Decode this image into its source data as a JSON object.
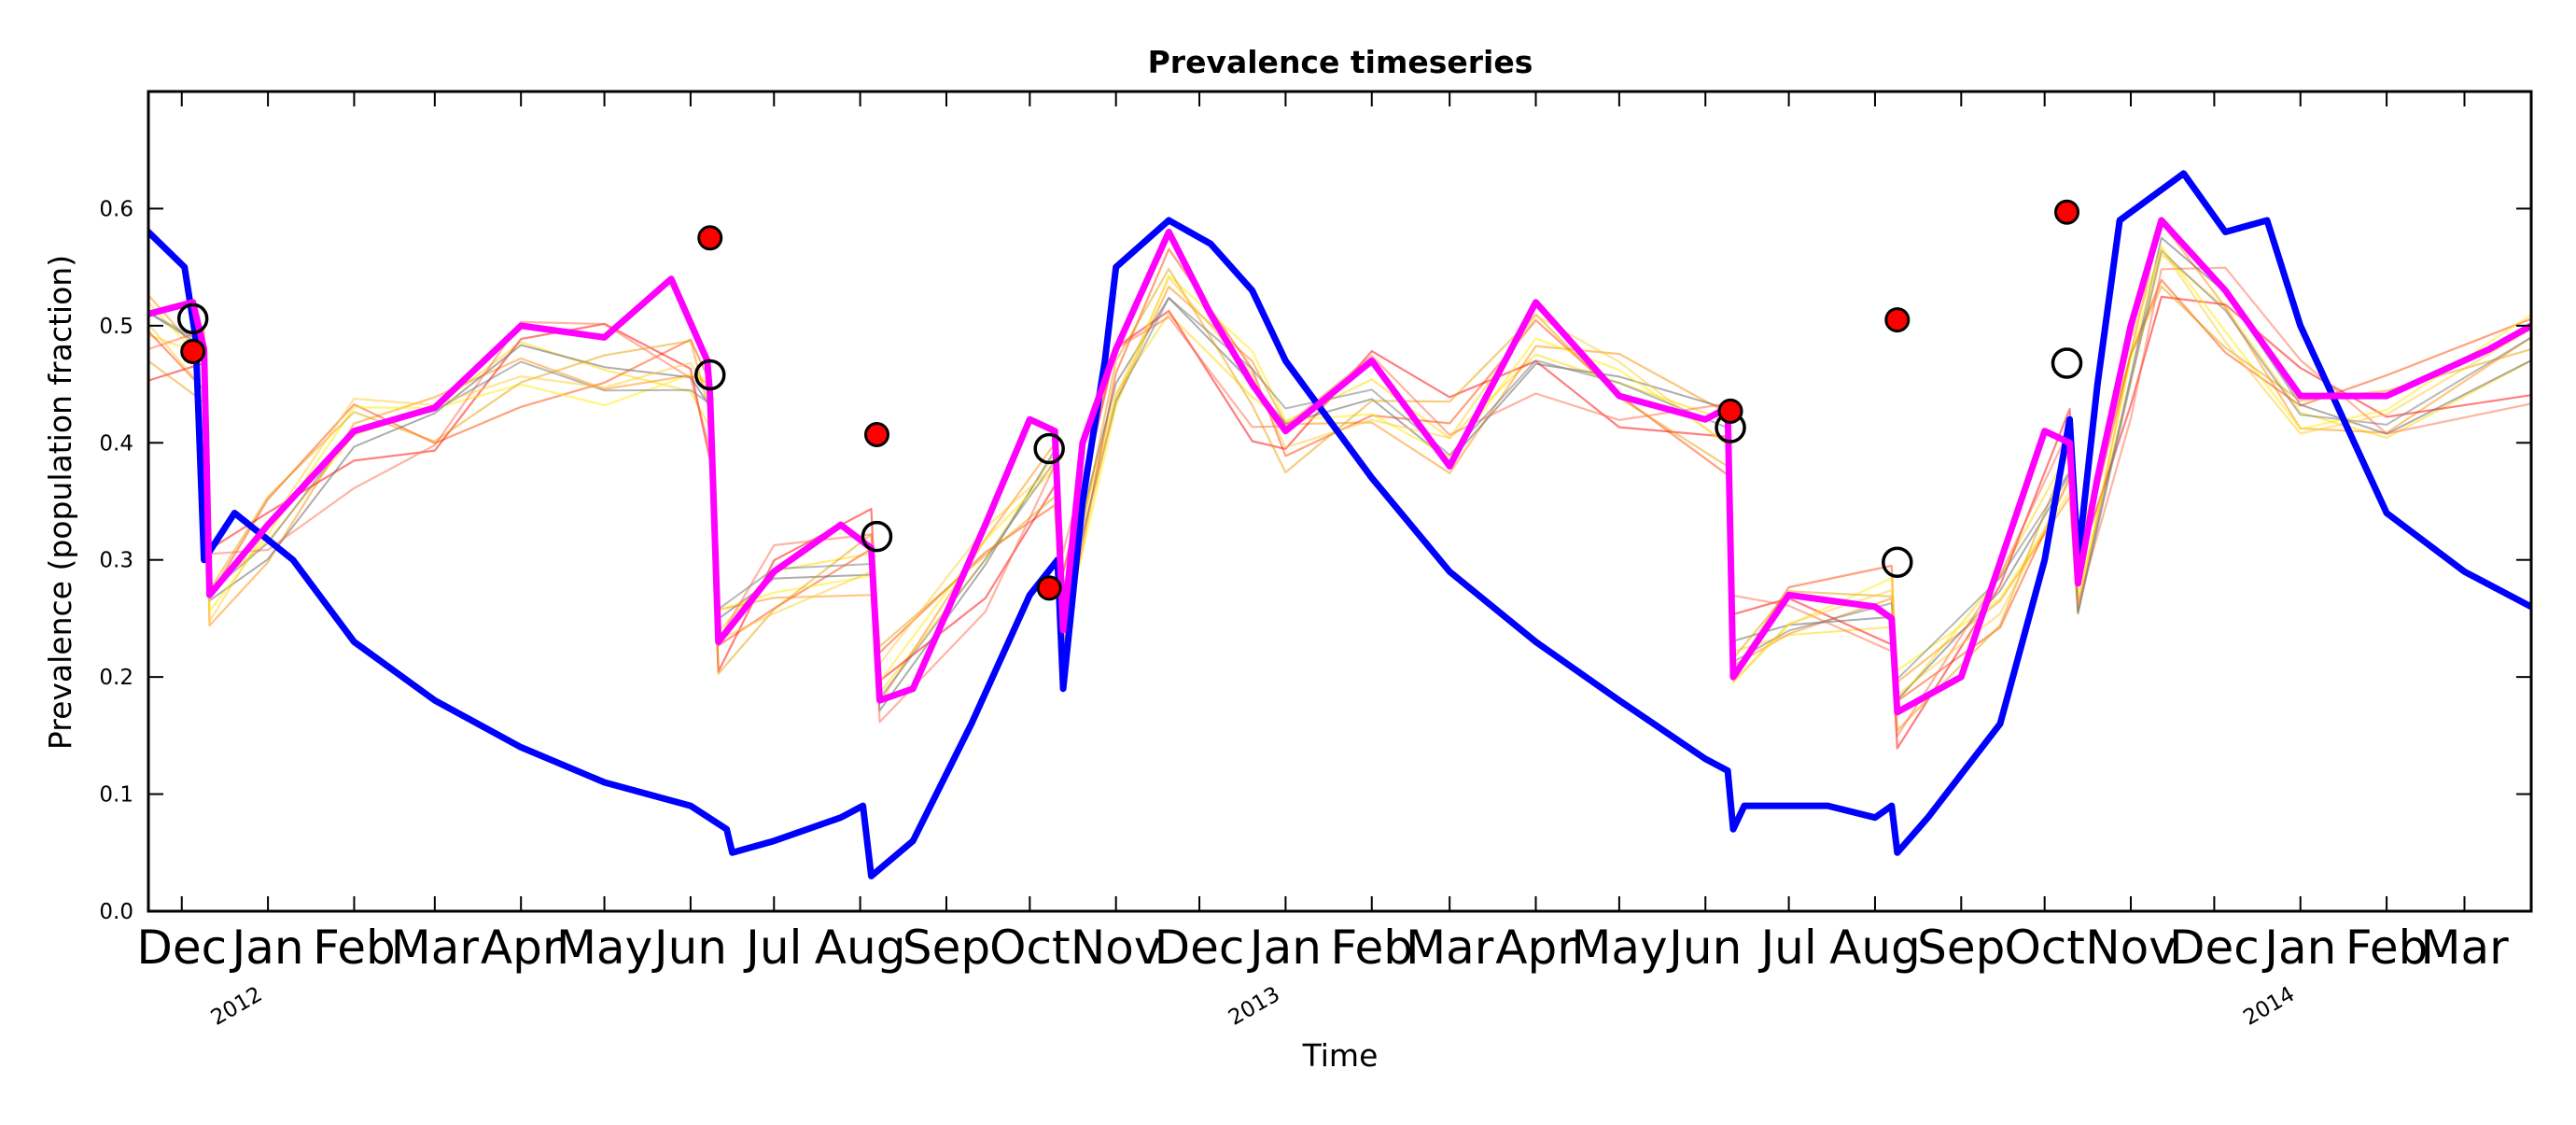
{
  "chart_data": {
    "type": "line",
    "title": "Prevalence timeseries",
    "xlabel": "Time",
    "ylabel": "Prevalence (population fraction)",
    "xlim": [
      "2011-11-19",
      "2014-03-25"
    ],
    "ylim": [
      0.0,
      0.7
    ],
    "yticks": [
      0.0,
      0.1,
      0.2,
      0.3,
      0.4,
      0.5,
      0.6
    ],
    "ytick_labels": [
      "0.0",
      "0.1",
      "0.2",
      "0.3",
      "0.4",
      "0.5",
      "0.6"
    ],
    "xticks": [
      {
        "date": "2011-12-01",
        "label": "Dec"
      },
      {
        "date": "2012-01-01",
        "label": "Jan"
      },
      {
        "date": "2012-02-01",
        "label": "Feb"
      },
      {
        "date": "2012-03-01",
        "label": "Mar"
      },
      {
        "date": "2012-04-01",
        "label": "Apr"
      },
      {
        "date": "2012-05-01",
        "label": "May"
      },
      {
        "date": "2012-06-01",
        "label": "Jun"
      },
      {
        "date": "2012-07-01",
        "label": "Jul"
      },
      {
        "date": "2012-08-01",
        "label": "Aug"
      },
      {
        "date": "2012-09-01",
        "label": "Sep"
      },
      {
        "date": "2012-10-01",
        "label": "Oct"
      },
      {
        "date": "2012-11-01",
        "label": "Nov"
      },
      {
        "date": "2012-12-01",
        "label": "Dec"
      },
      {
        "date": "2013-01-01",
        "label": "Jan"
      },
      {
        "date": "2013-02-01",
        "label": "Feb"
      },
      {
        "date": "2013-03-01",
        "label": "Mar"
      },
      {
        "date": "2013-04-01",
        "label": "Apr"
      },
      {
        "date": "2013-05-01",
        "label": "May"
      },
      {
        "date": "2013-06-01",
        "label": "Jun"
      },
      {
        "date": "2013-07-01",
        "label": "Jul"
      },
      {
        "date": "2013-08-01",
        "label": "Aug"
      },
      {
        "date": "2013-09-01",
        "label": "Sep"
      },
      {
        "date": "2013-10-01",
        "label": "Oct"
      },
      {
        "date": "2013-11-01",
        "label": "Nov"
      },
      {
        "date": "2013-12-01",
        "label": "Dec"
      },
      {
        "date": "2014-01-01",
        "label": "Jan"
      },
      {
        "date": "2014-02-01",
        "label": "Feb"
      },
      {
        "date": "2014-03-01",
        "label": "Mar"
      }
    ],
    "year_labels": [
      {
        "date": "2012-01-01",
        "label": "2012"
      },
      {
        "date": "2013-01-01",
        "label": "2013"
      },
      {
        "date": "2014-01-01",
        "label": "2014"
      }
    ],
    "series": [
      {
        "role": "blue-timeseries",
        "color": "#0000ff",
        "points": [
          [
            "2011-11-19",
            0.58
          ],
          [
            "2011-12-02",
            0.55
          ],
          [
            "2011-12-06",
            0.49
          ],
          [
            "2011-12-09",
            0.3
          ],
          [
            "2011-12-20",
            0.34
          ],
          [
            "2012-01-10",
            0.3
          ],
          [
            "2012-02-01",
            0.23
          ],
          [
            "2012-03-01",
            0.18
          ],
          [
            "2012-04-01",
            0.14
          ],
          [
            "2012-05-01",
            0.11
          ],
          [
            "2012-06-01",
            0.09
          ],
          [
            "2012-06-14",
            0.07
          ],
          [
            "2012-06-16",
            0.05
          ],
          [
            "2012-07-01",
            0.06
          ],
          [
            "2012-07-25",
            0.08
          ],
          [
            "2012-08-02",
            0.09
          ],
          [
            "2012-08-05",
            0.03
          ],
          [
            "2012-08-20",
            0.06
          ],
          [
            "2012-09-10",
            0.16
          ],
          [
            "2012-10-01",
            0.27
          ],
          [
            "2012-10-11",
            0.3
          ],
          [
            "2012-10-13",
            0.19
          ],
          [
            "2012-10-20",
            0.35
          ],
          [
            "2012-10-28",
            0.47
          ],
          [
            "2012-11-01",
            0.55
          ],
          [
            "2012-11-20",
            0.59
          ],
          [
            "2012-12-05",
            0.57
          ],
          [
            "2012-12-20",
            0.53
          ],
          [
            "2013-01-01",
            0.47
          ],
          [
            "2013-02-01",
            0.37
          ],
          [
            "2013-03-01",
            0.29
          ],
          [
            "2013-04-01",
            0.23
          ],
          [
            "2013-05-01",
            0.18
          ],
          [
            "2013-06-01",
            0.13
          ],
          [
            "2013-06-09",
            0.12
          ],
          [
            "2013-06-11",
            0.07
          ],
          [
            "2013-06-15",
            0.09
          ],
          [
            "2013-07-15",
            0.09
          ],
          [
            "2013-08-01",
            0.08
          ],
          [
            "2013-08-07",
            0.09
          ],
          [
            "2013-08-09",
            0.05
          ],
          [
            "2013-08-20",
            0.08
          ],
          [
            "2013-09-15",
            0.16
          ],
          [
            "2013-10-01",
            0.3
          ],
          [
            "2013-10-10",
            0.42
          ],
          [
            "2013-10-13",
            0.3
          ],
          [
            "2013-10-20",
            0.45
          ],
          [
            "2013-10-28",
            0.59
          ],
          [
            "2013-11-20",
            0.63
          ],
          [
            "2013-12-05",
            0.58
          ],
          [
            "2013-12-20",
            0.59
          ],
          [
            "2014-01-01",
            0.5
          ],
          [
            "2014-02-01",
            0.34
          ],
          [
            "2014-03-01",
            0.29
          ],
          [
            "2014-03-25",
            0.26
          ]
        ]
      },
      {
        "role": "magenta-timeseries",
        "color": "#ff00ff",
        "points": [
          [
            "2011-11-19",
            0.51
          ],
          [
            "2011-12-05",
            0.52
          ],
          [
            "2011-12-09",
            0.48
          ],
          [
            "2011-12-11",
            0.27
          ],
          [
            "2012-01-01",
            0.33
          ],
          [
            "2012-02-01",
            0.41
          ],
          [
            "2012-03-01",
            0.43
          ],
          [
            "2012-04-01",
            0.5
          ],
          [
            "2012-05-01",
            0.49
          ],
          [
            "2012-05-25",
            0.54
          ],
          [
            "2012-06-07",
            0.47
          ],
          [
            "2012-06-08",
            0.44
          ],
          [
            "2012-06-11",
            0.23
          ],
          [
            "2012-07-01",
            0.29
          ],
          [
            "2012-07-25",
            0.33
          ],
          [
            "2012-08-05",
            0.31
          ],
          [
            "2012-08-08",
            0.18
          ],
          [
            "2012-08-20",
            0.19
          ],
          [
            "2012-09-15",
            0.33
          ],
          [
            "2012-10-01",
            0.42
          ],
          [
            "2012-10-10",
            0.41
          ],
          [
            "2012-10-13",
            0.24
          ],
          [
            "2012-10-20",
            0.4
          ],
          [
            "2012-11-01",
            0.48
          ],
          [
            "2012-11-20",
            0.58
          ],
          [
            "2012-12-05",
            0.51
          ],
          [
            "2012-12-20",
            0.45
          ],
          [
            "2013-01-01",
            0.41
          ],
          [
            "2013-02-01",
            0.47
          ],
          [
            "2013-03-01",
            0.38
          ],
          [
            "2013-04-01",
            0.52
          ],
          [
            "2013-05-01",
            0.44
          ],
          [
            "2013-06-01",
            0.42
          ],
          [
            "2013-06-09",
            0.43
          ],
          [
            "2013-06-11",
            0.2
          ],
          [
            "2013-07-01",
            0.27
          ],
          [
            "2013-08-01",
            0.26
          ],
          [
            "2013-08-07",
            0.25
          ],
          [
            "2013-08-09",
            0.17
          ],
          [
            "2013-09-01",
            0.2
          ],
          [
            "2013-10-01",
            0.41
          ],
          [
            "2013-10-10",
            0.4
          ],
          [
            "2013-10-13",
            0.28
          ],
          [
            "2013-10-20",
            0.37
          ],
          [
            "2013-11-01",
            0.5
          ],
          [
            "2013-11-12",
            0.59
          ],
          [
            "2013-12-05",
            0.53
          ],
          [
            "2014-01-01",
            0.44
          ],
          [
            "2014-02-01",
            0.44
          ],
          [
            "2014-03-10",
            0.48
          ],
          [
            "2014-03-25",
            0.5
          ]
        ]
      }
    ],
    "ensemble_members": [
      {
        "color": "#ffd700",
        "offsets": [
          0.0,
          0.0,
          0.01,
          -0.03,
          -0.01,
          0.01,
          0.0,
          0.01,
          0.03,
          0.05,
          -0.06,
          -0.05,
          -0.02,
          0.01,
          0.0
        ]
      },
      {
        "color": "#ff8c00",
        "offsets": [
          0.0,
          0.0,
          0.0,
          0.0,
          0.0,
          0.0,
          0.0,
          0.0,
          0.0,
          0.0,
          0.0,
          0.0,
          0.0,
          0.0,
          0.0
        ]
      },
      {
        "color": "#ff4500",
        "offsets": [
          0.0,
          0.0,
          0.0,
          0.0,
          0.0,
          0.0,
          0.0,
          0.0,
          0.0,
          0.0,
          0.0,
          0.0,
          0.0,
          0.0,
          0.0
        ]
      },
      {
        "color": "#ff0000",
        "offsets": [
          0.0,
          0.0,
          0.0,
          0.0,
          0.0,
          0.0,
          0.0,
          0.0,
          0.0,
          0.0,
          0.0,
          0.0,
          0.0,
          0.0,
          0.0
        ]
      }
    ],
    "ensemble_base": [
      [
        "2011-11-19",
        0.5
      ],
      [
        "2011-12-09",
        0.47
      ],
      [
        "2011-12-11",
        0.27
      ],
      [
        "2012-01-01",
        0.32
      ],
      [
        "2012-02-01",
        0.41
      ],
      [
        "2012-03-01",
        0.42
      ],
      [
        "2012-04-01",
        0.47
      ],
      [
        "2012-05-01",
        0.46
      ],
      [
        "2012-06-01",
        0.46
      ],
      [
        "2012-06-08",
        0.43
      ],
      [
        "2012-06-11",
        0.24
      ],
      [
        "2012-07-01",
        0.28
      ],
      [
        "2012-08-05",
        0.3
      ],
      [
        "2012-08-08",
        0.19
      ],
      [
        "2012-09-15",
        0.3
      ],
      [
        "2012-10-10",
        0.38
      ],
      [
        "2012-10-13",
        0.26
      ],
      [
        "2012-11-01",
        0.45
      ],
      [
        "2012-11-20",
        0.53
      ],
      [
        "2012-12-20",
        0.45
      ],
      [
        "2013-01-01",
        0.41
      ],
      [
        "2013-02-01",
        0.44
      ],
      [
        "2013-03-01",
        0.4
      ],
      [
        "2013-04-01",
        0.48
      ],
      [
        "2013-05-01",
        0.45
      ],
      [
        "2013-06-09",
        0.41
      ],
      [
        "2013-06-11",
        0.22
      ],
      [
        "2013-07-01",
        0.25
      ],
      [
        "2013-08-07",
        0.26
      ],
      [
        "2013-08-09",
        0.18
      ],
      [
        "2013-09-15",
        0.27
      ],
      [
        "2013-10-10",
        0.38
      ],
      [
        "2013-10-13",
        0.27
      ],
      [
        "2013-11-01",
        0.46
      ],
      [
        "2013-11-12",
        0.56
      ],
      [
        "2013-12-05",
        0.51
      ],
      [
        "2014-01-01",
        0.43
      ],
      [
        "2014-02-01",
        0.42
      ],
      [
        "2014-03-25",
        0.48
      ]
    ],
    "markers_red": [
      [
        "2011-12-05",
        0.478
      ],
      [
        "2012-06-08",
        0.575
      ],
      [
        "2012-08-07",
        0.407
      ],
      [
        "2012-10-08",
        0.276
      ],
      [
        "2013-06-10",
        0.427
      ],
      [
        "2013-08-09",
        0.505
      ],
      [
        "2013-10-09",
        0.597
      ]
    ],
    "markers_open": [
      [
        "2011-12-05",
        0.506
      ],
      [
        "2012-06-08",
        0.458
      ],
      [
        "2012-08-07",
        0.32
      ],
      [
        "2012-10-08",
        0.395
      ],
      [
        "2013-06-10",
        0.413
      ],
      [
        "2013-08-09",
        0.298
      ],
      [
        "2013-10-09",
        0.468
      ]
    ]
  }
}
